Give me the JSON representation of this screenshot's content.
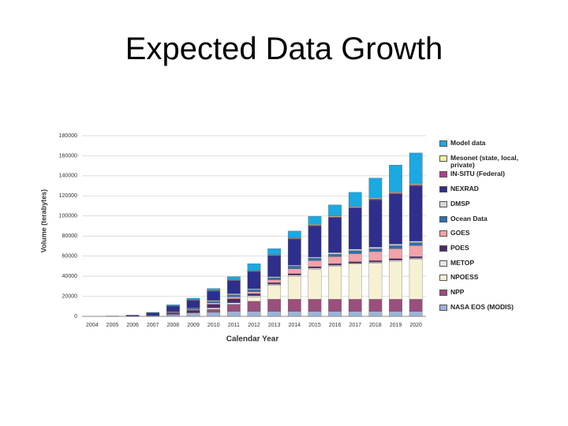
{
  "title": "Expected Data Growth",
  "chart_data": {
    "type": "stacked-bar",
    "ylabel": "Volume (terabytes)",
    "xlabel": "Calendar Year",
    "categories": [
      "2004",
      "2005",
      "2006",
      "2007",
      "2008",
      "2009",
      "2010",
      "2011",
      "2012",
      "2013",
      "2014",
      "2015",
      "2016",
      "2017",
      "2018",
      "2019",
      "2020"
    ],
    "ylim": [
      0,
      180000
    ],
    "yticks": [
      0,
      20000,
      40000,
      60000,
      80000,
      100000,
      120000,
      140000,
      160000,
      180000
    ],
    "grid": true,
    "series": [
      {
        "name": "NASA EOS (MODIS)",
        "color": "#9db3d6",
        "values": [
          0,
          0,
          200,
          500,
          1500,
          2500,
          4000,
          5000,
          5000,
          5000,
          5000,
          5000,
          5000,
          5000,
          5000,
          5000,
          5000
        ]
      },
      {
        "name": "NPP",
        "color": "#9a4f7c",
        "values": [
          0,
          0,
          0,
          0,
          0,
          0,
          3000,
          7000,
          10000,
          12000,
          12000,
          12000,
          12000,
          12000,
          12000,
          12000,
          12000
        ]
      },
      {
        "name": "NPOESS",
        "color": "#f6f1d2",
        "values": [
          0,
          0,
          0,
          0,
          0,
          0,
          0,
          0,
          4000,
          14000,
          23000,
          30000,
          33000,
          35000,
          36000,
          38000,
          40000
        ]
      },
      {
        "name": "METOP",
        "color": "#e6e6e6",
        "values": [
          0,
          0,
          0,
          0,
          500,
          1000,
          1500,
          1500,
          1500,
          1000,
          1000,
          1000,
          1000,
          1000,
          1000,
          1000,
          1000
        ]
      },
      {
        "name": "POES",
        "color": "#4b2c6b",
        "values": [
          0,
          0,
          0,
          500,
          1500,
          2500,
          3500,
          4000,
          2000,
          1500,
          1500,
          1500,
          1500,
          1500,
          1500,
          1500,
          1500
        ]
      },
      {
        "name": "GOES",
        "color": "#f2a2a8",
        "values": [
          0,
          0,
          0,
          0,
          500,
          1000,
          1500,
          2000,
          2000,
          3000,
          5000,
          6000,
          7000,
          8000,
          9000,
          10000,
          11000
        ]
      },
      {
        "name": "Ocean Data",
        "color": "#2b70b2",
        "values": [
          0,
          0,
          0,
          0,
          500,
          1000,
          1500,
          2000,
          2000,
          2000,
          2500,
          2500,
          2500,
          3000,
          3000,
          3000,
          3000
        ]
      },
      {
        "name": "DMSP",
        "color": "#d6d6d6",
        "values": [
          0,
          0,
          0,
          0,
          500,
          500,
          1000,
          1000,
          1000,
          1000,
          1000,
          1000,
          1500,
          1500,
          1500,
          1500,
          1500
        ]
      },
      {
        "name": "NEXRAD",
        "color": "#2e2f8c",
        "values": [
          0,
          300,
          1000,
          2500,
          5000,
          7500,
          9000,
          13000,
          17000,
          21000,
          26000,
          31000,
          35000,
          41000,
          47000,
          50000,
          55000
        ]
      },
      {
        "name": "IN-SITU (Federal)",
        "color": "#b0408f",
        "values": [
          0,
          0,
          0,
          0,
          300,
          300,
          500,
          500,
          500,
          500,
          500,
          800,
          800,
          800,
          1000,
          1000,
          1000
        ]
      },
      {
        "name": "Mesonet (state, local, private)",
        "color": "#f4efa0",
        "values": [
          0,
          0,
          0,
          0,
          200,
          300,
          300,
          500,
          500,
          500,
          500,
          800,
          800,
          800,
          800,
          800,
          800
        ]
      },
      {
        "name": "Model data",
        "color": "#1ca8e0",
        "values": [
          0,
          0,
          0,
          500,
          1000,
          1500,
          2000,
          3000,
          7000,
          6000,
          7000,
          8000,
          11000,
          14000,
          20000,
          27000,
          31000
        ]
      }
    ]
  }
}
